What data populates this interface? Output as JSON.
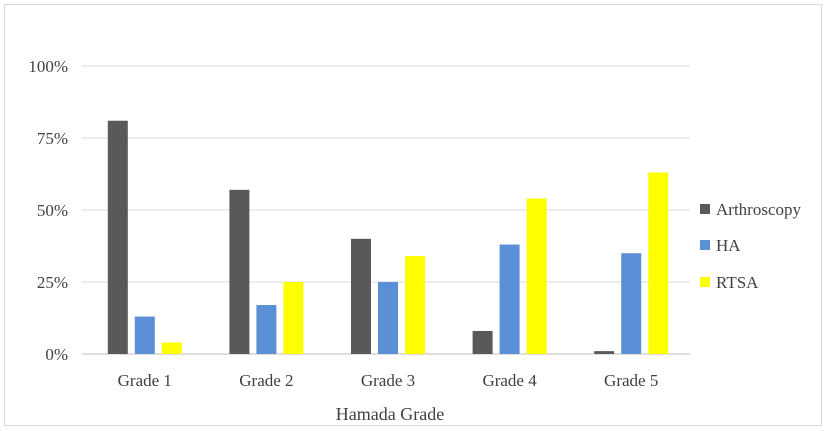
{
  "chart_data": {
    "type": "bar",
    "categories": [
      "Grade 1",
      "Grade 2",
      "Grade 3",
      "Grade 4",
      "Grade 5"
    ],
    "series": [
      {
        "name": "Arthroscopy",
        "values": [
          81,
          57,
          40,
          8,
          1
        ],
        "color": "#595959"
      },
      {
        "name": "HA",
        "values": [
          13,
          17,
          25,
          38,
          35
        ],
        "color": "#5b8fd6"
      },
      {
        "name": "RTSA",
        "values": [
          4,
          25,
          34,
          54,
          63
        ],
        "color": "#ffff00"
      }
    ],
    "xlabel": "Hamada Grade",
    "ylabel": "",
    "ylim": [
      0,
      100
    ],
    "yticks": [
      "0%",
      "25%",
      "50%",
      "75%",
      "100%"
    ],
    "ytick_values": [
      0,
      25,
      50,
      75,
      100
    ],
    "grid": true,
    "legend_position": "right"
  }
}
